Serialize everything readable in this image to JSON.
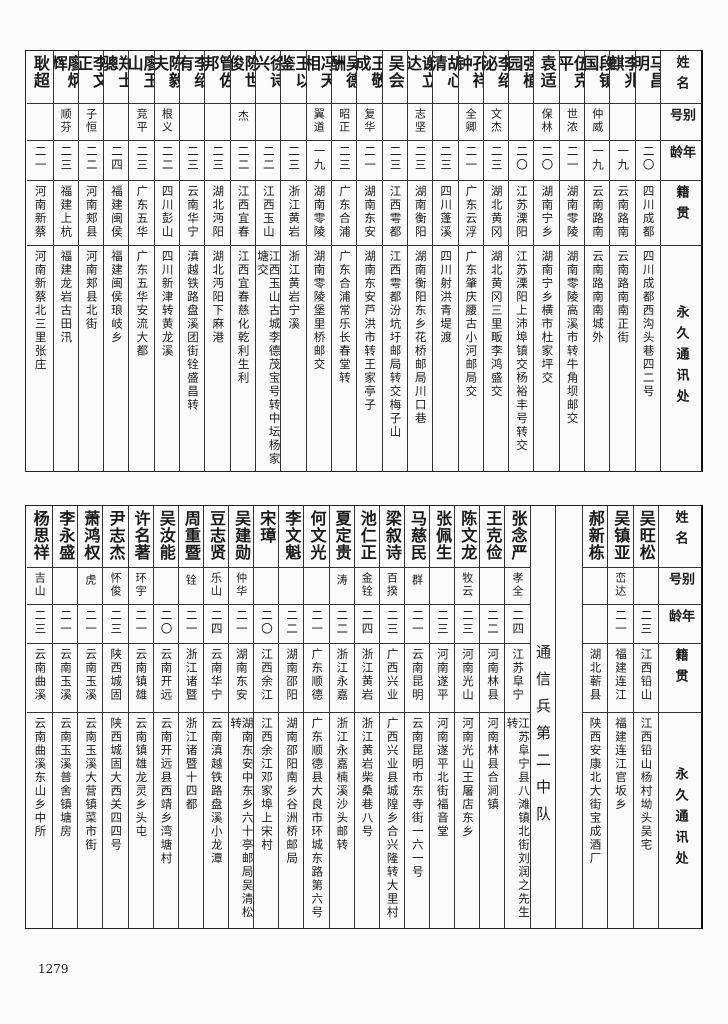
{
  "headers": {
    "name": "姓名",
    "alias": "别号",
    "age": "年龄",
    "origin": "籍贯",
    "address": "永久通讯处"
  },
  "top_table": [
    {
      "name": "马昌明",
      "alias": "",
      "age": "二〇",
      "origin": "四川成都",
      "address": "四川成都西沟头巷四二号"
    },
    {
      "name": "李兆麒",
      "alias": "",
      "age": "一九",
      "origin": "云南路南",
      "address": "云南路南南正街"
    },
    {
      "name": "段镇国",
      "alias": "仲威",
      "age": "一九",
      "origin": "云南路南",
      "address": "云南路南南城外"
    },
    {
      "name": "伍克平",
      "alias": "世浓",
      "age": "二一",
      "origin": "湖南零陵",
      "address": "湖南零陵高溪市转牛角坝邮交"
    },
    {
      "name": "袁适",
      "alias": "保林",
      "age": "二〇",
      "origin": "湖南宁乡",
      "address": "湖南宁乡横市杜家坪交"
    },
    {
      "name": "强植园",
      "alias": "",
      "age": "二〇",
      "origin": "江苏溧阳",
      "address": "江苏溧阳上沛埠镇交杨裕丰号转交"
    },
    {
      "name": "李绍泌",
      "alias": "文杰",
      "age": "二三",
      "origin": "湖北黄冈",
      "address": "湖北黄冈三里畈李鸿盛交"
    },
    {
      "name": "孔祥钟",
      "alias": "全卿",
      "age": "二一",
      "origin": "广东云浮",
      "address": "广东肇庆腰古小河邮局交"
    },
    {
      "name": "胡心清",
      "alias": "",
      "age": "二三",
      "origin": "四川蓬溪",
      "address": "四川射洪青堤渡"
    },
    {
      "name": "谢立达",
      "alias": "志坚",
      "age": "二三",
      "origin": "湖南衡阳",
      "address": "湖南衡阳东乡花桥邮局川口巷"
    },
    {
      "name": "吴会",
      "alias": "",
      "age": "二三",
      "origin": "江西雩都",
      "address": "江西雩都汾坑圩邮局转交梅子山"
    },
    {
      "name": "王敬成",
      "note": "㊟",
      "alias": "复华",
      "age": "二一",
      "origin": "湖南东安",
      "address": "湖南东安芦洪市转王家亭子"
    },
    {
      "name": "吴德酬",
      "alias": "昭正",
      "age": "二三",
      "origin": "广东合浦",
      "address": "广东合浦常乐长春堂转"
    },
    {
      "name": "冯天相",
      "alias": "翼道",
      "age": "一九",
      "origin": "湖南零陵",
      "address": "湖南零陵堡里桥邮交"
    },
    {
      "name": "王以鉴",
      "alias": "",
      "age": "二三",
      "origin": "浙江黄岩",
      "address": "浙江黄岩宁溪"
    },
    {
      "name": "徐诗兴",
      "alias": "",
      "age": "二二",
      "origin": "江西玉山",
      "address": "江西玉山古城李德茂宝号转中坛杨家塘交"
    },
    {
      "name": "陈世俊",
      "alias": "杰",
      "age": "二二",
      "origin": "江西宜春",
      "address": "江西宜春慈化乾利生利"
    },
    {
      "name": "管佐邦",
      "alias": "",
      "age": "二三",
      "origin": "湖北沔阳",
      "address": "湖北沔阳下麻港"
    },
    {
      "name": "李绍有",
      "alias": "",
      "age": "二三",
      "origin": "云南华宁",
      "address": "滇越铁路盘溪团街铨盛昌转"
    },
    {
      "name": "陈毅夫",
      "alias": "根义",
      "age": "二二",
      "origin": "四川彭山",
      "address": "四川新津转黄龙溪"
    },
    {
      "name": "廖玉山",
      "alias": "竞平",
      "age": "二三",
      "origin": "广东五华",
      "address": "广东五华安流大都"
    },
    {
      "name": "郑士骢",
      "alias": "",
      "age": "二四",
      "origin": "福建闽侯",
      "address": "福建闽侯琅岐乡"
    },
    {
      "name": "李文正",
      "note": "㊟",
      "alias": "子恒",
      "age": "二二",
      "origin": "河南郏县",
      "address": "河南郏县北街"
    },
    {
      "name": "廖炳辉",
      "alias": "顺芬",
      "age": "二三",
      "origin": "福建上杭",
      "address": "福建龙岩古田汛"
    },
    {
      "name": "耿超",
      "alias": "",
      "age": "二一",
      "origin": "河南新蔡",
      "address": "河南新蔡北三里张庄"
    }
  ],
  "bottom_right": [
    {
      "name": "吴旺松",
      "alias": "",
      "age": "二三",
      "origin": "江西铅山",
      "address": "江西铅山杨村坳头吴宅"
    },
    {
      "name": "吴镇亚",
      "alias": "峦达",
      "age": "二一",
      "origin": "福建连江",
      "address": "福建连江官坂乡"
    },
    {
      "name": "郝新栋",
      "note": "㊟",
      "alias": "",
      "age": "",
      "origin": "湖北蕲县",
      "address": "陕西安康北大街宝成酒厂"
    }
  ],
  "section_title": "通信兵第二中队",
  "bottom_left": [
    {
      "name": "张念严",
      "alias": "孝全",
      "age": "二四",
      "origin": "江苏阜宁",
      "address": "江苏阜宁县八滩镇北街刘润之先生转"
    },
    {
      "name": "王克俭",
      "alias": "",
      "age": "二二",
      "origin": "河南林县",
      "address": "河南林县合涧镇"
    },
    {
      "name": "陈文龙",
      "alias": "牧云",
      "age": "二三",
      "origin": "河南光山",
      "address": "河南光山王屠店东乡"
    },
    {
      "name": "张佩生",
      "alias": "",
      "age": "二三",
      "origin": "河南遂平",
      "address": "河南遂平北街福音堂"
    },
    {
      "name": "马慈民",
      "alias": "群",
      "age": "二一",
      "origin": "云南昆明",
      "address": "云南昆明市东寺街一六一号"
    },
    {
      "name": "梁叙诗",
      "alias": "百揆",
      "age": "二三",
      "origin": "广西兴业",
      "address": "广西兴业县城隍乡合兴隆转大里村"
    },
    {
      "name": "池仁正",
      "alias": "金铨",
      "age": "二四",
      "origin": "浙江黄岩",
      "address": "浙江黄岩柴桑巷八号"
    },
    {
      "name": "夏定贵",
      "alias": "涛",
      "age": "二二",
      "origin": "浙江永嘉",
      "address": "浙江永嘉楠溪沙头邮转"
    },
    {
      "name": "何文光",
      "alias": "",
      "age": "二一",
      "origin": "广东顺德",
      "address": "广东顺德县大良市环城东路第六号"
    },
    {
      "name": "李文魁",
      "alias": "",
      "age": "二二",
      "origin": "湖南邵阳",
      "address": "湖南邵阳南乡谷洲桥邮局"
    },
    {
      "name": "宋璋",
      "alias": "",
      "age": "二〇",
      "origin": "江西余江",
      "address": "江西余江邓家埠上宋村"
    },
    {
      "name": "吴建勋",
      "alias": "仲华",
      "age": "二一",
      "origin": "湖南东安",
      "address": "湖南东安中东乡六十亭邮局吴清松转"
    },
    {
      "name": "豆志贤",
      "alias": "乐山",
      "age": "二四",
      "origin": "云南华宁",
      "address": "云南滇越铁路盘溪小龙潭"
    },
    {
      "name": "周重暨",
      "alias": "铨",
      "age": "二一",
      "origin": "浙江诸暨",
      "address": "浙江诸暨十四都"
    },
    {
      "name": "吴汝能",
      "alias": "",
      "age": "二〇",
      "origin": "云南开远",
      "address": "云南开远县西靖乡湾塘村"
    },
    {
      "name": "许名著",
      "alias": "环宇",
      "age": "二一",
      "origin": "云南镇雄",
      "address": "云南镇雄龙灵乡头屯"
    },
    {
      "name": "尹志杰",
      "alias": "怀俊",
      "age": "二三",
      "origin": "陕西城固",
      "address": "陕西城固大西关四四号"
    },
    {
      "name": "萧鸿权",
      "alias": "虎",
      "age": "二一",
      "origin": "云南玉溪",
      "address": "云南玉溪大营镇菜市街"
    },
    {
      "name": "李永盛",
      "alias": "",
      "age": "二一",
      "origin": "云南玉溪",
      "address": "云南玉溪普舍镇塘房"
    },
    {
      "name": "杨思祥",
      "alias": "吉山",
      "age": "二三",
      "origin": "云南曲溪",
      "address": "云南曲溪东山乡中所"
    }
  ],
  "page_number": "1279"
}
